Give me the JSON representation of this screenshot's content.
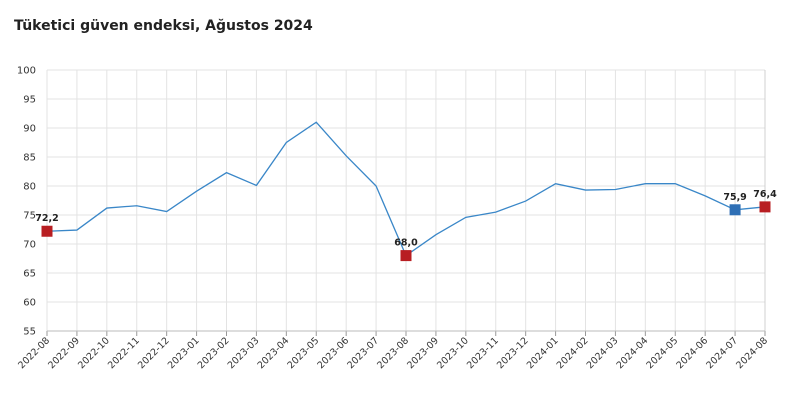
{
  "chart_data": {
    "type": "line",
    "title": "Tüketici güven endeksi, Ağustos 2024",
    "xlabel": "",
    "ylabel": "",
    "ylim": [
      55,
      100
    ],
    "yticks": [
      "55",
      "60",
      "65",
      "70",
      "75",
      "80",
      "85",
      "90",
      "95",
      "100"
    ],
    "grid": true,
    "legend": "none",
    "categories": [
      "2022-08",
      "2022-09",
      "2022-10",
      "2022-11",
      "2022-12",
      "2023-01",
      "2023-02",
      "2023-03",
      "2023-04",
      "2023-05",
      "2023-06",
      "2023-07",
      "2023-08",
      "2023-09",
      "2023-10",
      "2023-11",
      "2023-12",
      "2024-01",
      "2024-02",
      "2024-03",
      "2024-04",
      "2024-05",
      "2024-06",
      "2024-07",
      "2024-08"
    ],
    "series": [
      {
        "values": [
          72.2,
          72.4,
          76.2,
          76.6,
          75.6,
          79.1,
          82.3,
          80.1,
          87.5,
          91.0,
          85.2,
          80.0,
          68.0,
          71.6,
          74.6,
          75.5,
          77.4,
          80.4,
          79.3,
          79.4,
          80.4,
          80.4,
          78.3,
          75.9,
          76.4
        ],
        "color": "#3a87c8"
      }
    ],
    "annotations": [
      {
        "index": 0,
        "label": "72,2",
        "color": "#b81e22"
      },
      {
        "index": 12,
        "label": "68,0",
        "color": "#b81e22"
      },
      {
        "index": 23,
        "label": "75,9",
        "color": "#2e6fb5"
      },
      {
        "index": 24,
        "label": "76,4",
        "color": "#b81e22"
      }
    ]
  }
}
